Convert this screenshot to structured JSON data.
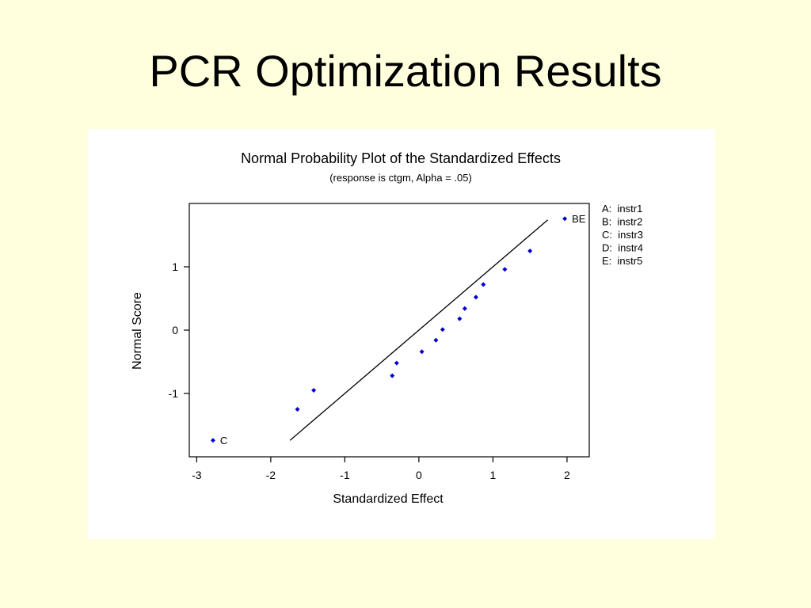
{
  "slide": {
    "title": "PCR Optimization Results"
  },
  "chart_data": {
    "type": "scatter",
    "title": "Normal Probability Plot of the Standardized Effects",
    "subtitle": "(response is ctgm, Alpha = .05)",
    "xlabel": "Standardized Effect",
    "ylabel": "Normal Score",
    "xlim": [
      -3.1,
      2.3
    ],
    "ylim": [
      -2.0,
      2.0
    ],
    "xticks": [
      -3,
      -2,
      -1,
      0,
      1,
      2
    ],
    "yticks": [
      -1,
      0,
      1
    ],
    "grid": false,
    "legend_position": "right",
    "legend": [
      "A:  instr1",
      "B:  instr2",
      "C:  instr3",
      "D:  instr4",
      "E:  instr5"
    ],
    "marker_color": "#0000CC",
    "reference_line": {
      "x": [
        -1.74,
        1.74
      ],
      "y": [
        -1.74,
        1.74
      ]
    },
    "series": [
      {
        "points": [
          {
            "x": -2.78,
            "y": -1.74,
            "label": "C"
          },
          {
            "x": -1.64,
            "y": -1.25
          },
          {
            "x": -1.42,
            "y": -0.95
          },
          {
            "x": -0.36,
            "y": -0.72
          },
          {
            "x": -0.3,
            "y": -0.52
          },
          {
            "x": 0.04,
            "y": -0.34
          },
          {
            "x": 0.23,
            "y": -0.16
          },
          {
            "x": 0.32,
            "y": 0.01
          },
          {
            "x": 0.55,
            "y": 0.18
          },
          {
            "x": 0.62,
            "y": 0.34
          },
          {
            "x": 0.77,
            "y": 0.52
          },
          {
            "x": 0.87,
            "y": 0.72
          },
          {
            "x": 1.16,
            "y": 0.96
          },
          {
            "x": 1.5,
            "y": 1.25
          },
          {
            "x": 1.97,
            "y": 1.76,
            "label": "BE"
          }
        ]
      }
    ]
  }
}
